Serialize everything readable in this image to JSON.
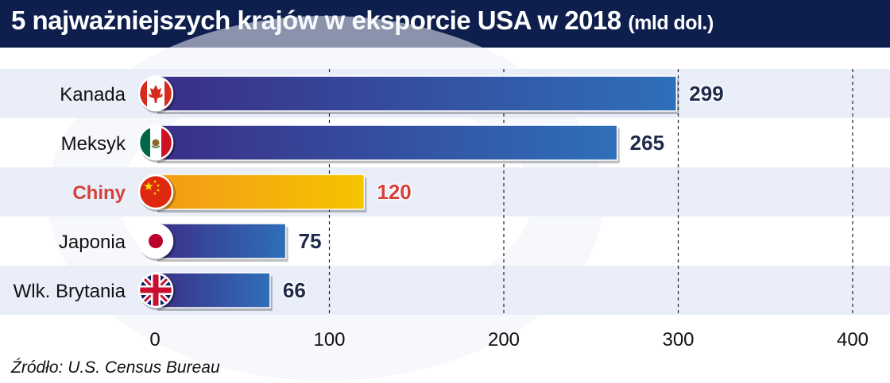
{
  "title": "5 najważniejszych krajów w eksporcie USA w 2018",
  "title_unit": "(mld dol.)",
  "source": "Źródło: U.S. Census Bureau",
  "colors": {
    "header": "#0e1f4e",
    "band": "#e9eef9",
    "bar_start": "#3a2f86",
    "bar_end": "#2f6fb9",
    "highlight_start": "#f39a17",
    "highlight_end": "#f5c400",
    "highlight_label": "#d6403a"
  },
  "chart_data": {
    "type": "bar",
    "orientation": "horizontal",
    "categories": [
      "Kanada",
      "Meksyk",
      "Chiny",
      "Japonia",
      "Wlk. Brytania"
    ],
    "values": [
      299,
      265,
      120,
      75,
      66
    ],
    "value_labels": [
      "299",
      "265",
      "120",
      "75",
      "66"
    ],
    "flags": [
      "flag-canada-icon",
      "flag-mexico-icon",
      "flag-china-icon",
      "flag-japan-icon",
      "flag-uk-icon"
    ],
    "highlight": "Chiny",
    "xlim": [
      0,
      400
    ],
    "xticks": [
      0,
      100,
      200,
      300,
      400
    ],
    "xtick_labels": [
      "0",
      "100",
      "200",
      "300",
      "400"
    ],
    "grid": "vertical dashed"
  }
}
